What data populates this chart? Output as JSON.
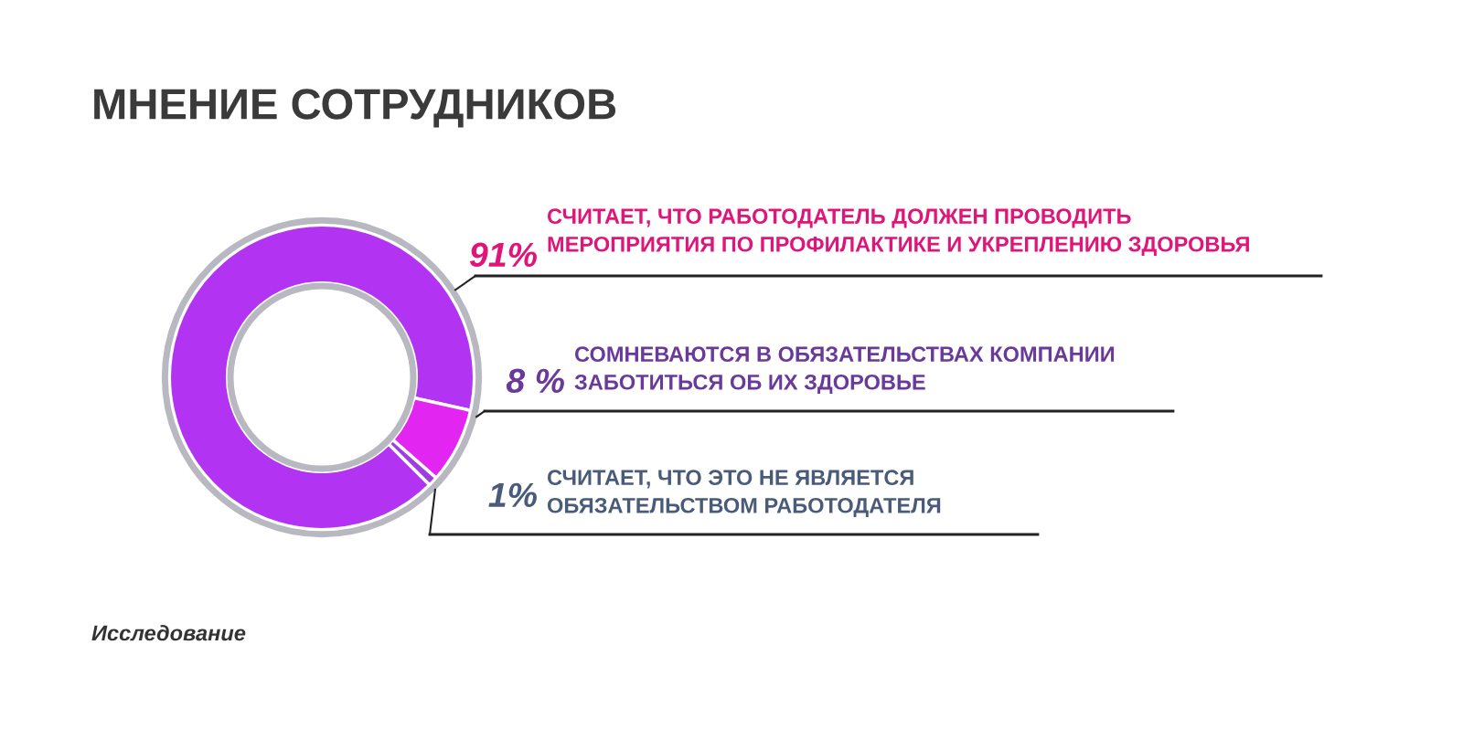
{
  "chart_data": {
    "type": "donut",
    "title": "МНЕНИЕ СОТРУДНИКОВ",
    "categories": [
      "СЧИТАЕТ, ЧТО РАБОТОДАТЕЛЬ ДОЛЖЕН ПРОВОДИТЬ\nМЕРОПРИЯТИЯ ПО ПРОФИЛАКТИКЕ И УКРЕПЛЕНИЮ ЗДОРОВЬЯ",
      "СОМНЕВАЮТСЯ В ОБЯЗАТЕЛЬСТВАХ КОМПАНИИ\nЗАБОТИТЬСЯ ОБ ИХ ЗДОРОВЬЕ",
      "СЧИТАЕТ, ЧТО ЭТО НЕ ЯВЛЯЕТСЯ\nОБЯЗАТЕЛЬСТВОМ РАБОТОДАТЕЛЯ"
    ],
    "values": [
      91,
      8,
      1
    ],
    "value_labels": [
      "91%",
      "8 %",
      "1%"
    ],
    "colors": [
      "#b234f2",
      "#e325f2",
      "#9d3fe0"
    ],
    "annotations": [
      "Исследование"
    ]
  }
}
